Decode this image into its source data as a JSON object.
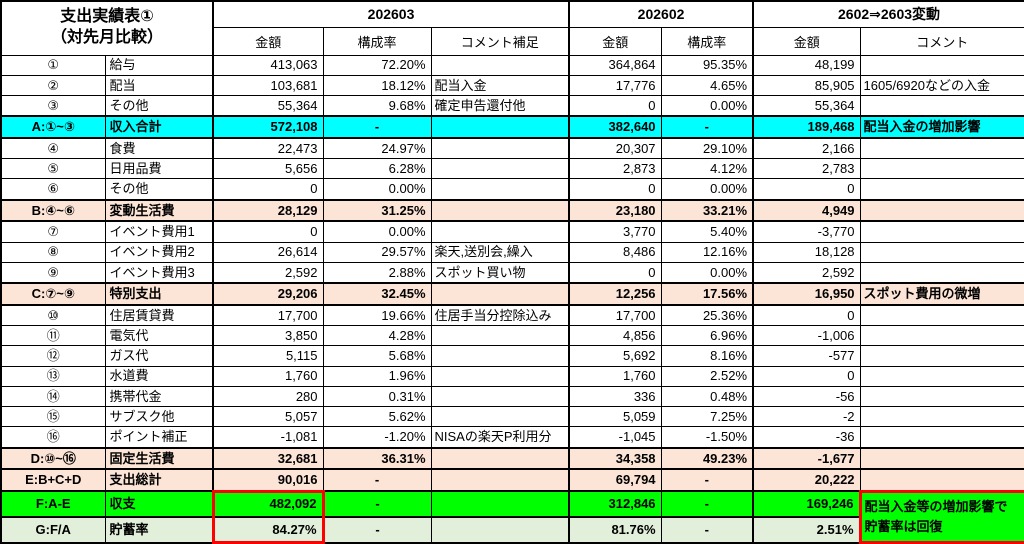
{
  "title": {
    "line1": "支出実績表①",
    "line2": "（対先月比較）"
  },
  "column_groups": [
    {
      "label": "202603"
    },
    {
      "label": "202602"
    },
    {
      "label": "2602⇒2603変動"
    }
  ],
  "subheaders": [
    "金額",
    "構成率",
    "コメント補足",
    "金額",
    "構成率",
    "金額",
    "コメント"
  ],
  "colors": {
    "income_total_row": "#00ffff",
    "section_total_row": "#fce4d6",
    "balance_row": "#00ff00",
    "savings_rate_row": "#e2efda",
    "highlight_border": "#ff0000",
    "grid": "#000000",
    "background": "#ffffff"
  },
  "rows": [
    {
      "id": "①",
      "label": "給与",
      "m3_amount": "413,063",
      "m3_ratio": "72.20%",
      "m3_comment": "",
      "m2_amount": "364,864",
      "m2_ratio": "95.35%",
      "delta_amount": "48,199",
      "delta_comment": ""
    },
    {
      "id": "②",
      "label": "配当",
      "m3_amount": "103,681",
      "m3_ratio": "18.12%",
      "m3_comment": "配当入金",
      "m2_amount": "17,776",
      "m2_ratio": "4.65%",
      "delta_amount": "85,905",
      "delta_comment": "1605/6920などの入金"
    },
    {
      "id": "③",
      "label": "その他",
      "m3_amount": "55,364",
      "m3_ratio": "9.68%",
      "m3_comment": "確定申告還付他",
      "m2_amount": "0",
      "m2_ratio": "0.00%",
      "delta_amount": "55,364",
      "delta_comment": ""
    },
    {
      "id": "A:①~③",
      "label": "収入合計",
      "m3_amount": "572,108",
      "m3_ratio": "-",
      "m3_comment": "",
      "m2_amount": "382,640",
      "m2_ratio": "-",
      "delta_amount": "189,468",
      "delta_comment": "配当入金の増加影響",
      "style": "cyan"
    },
    {
      "id": "④",
      "label": "食費",
      "m3_amount": "22,473",
      "m3_ratio": "24.97%",
      "m3_comment": "",
      "m2_amount": "20,307",
      "m2_ratio": "29.10%",
      "delta_amount": "2,166",
      "delta_comment": ""
    },
    {
      "id": "⑤",
      "label": "日用品費",
      "m3_amount": "5,656",
      "m3_ratio": "6.28%",
      "m3_comment": "",
      "m2_amount": "2,873",
      "m2_ratio": "4.12%",
      "delta_amount": "2,783",
      "delta_comment": ""
    },
    {
      "id": "⑥",
      "label": "その他",
      "m3_amount": "0",
      "m3_ratio": "0.00%",
      "m3_comment": "",
      "m2_amount": "0",
      "m2_ratio": "0.00%",
      "delta_amount": "0",
      "delta_comment": ""
    },
    {
      "id": "B:④~⑥",
      "label": "変動生活費",
      "m3_amount": "28,129",
      "m3_ratio": "31.25%",
      "m3_comment": "",
      "m2_amount": "23,180",
      "m2_ratio": "33.21%",
      "delta_amount": "4,949",
      "delta_comment": "",
      "style": "peach"
    },
    {
      "id": "⑦",
      "label": "イベント費用1",
      "m3_amount": "0",
      "m3_ratio": "0.00%",
      "m3_comment": "",
      "m2_amount": "3,770",
      "m2_ratio": "5.40%",
      "delta_amount": "-3,770",
      "delta_comment": ""
    },
    {
      "id": "⑧",
      "label": "イベント費用2",
      "m3_amount": "26,614",
      "m3_ratio": "29.57%",
      "m3_comment": "楽天,送別会,繰入",
      "m2_amount": "8,486",
      "m2_ratio": "12.16%",
      "delta_amount": "18,128",
      "delta_comment": ""
    },
    {
      "id": "⑨",
      "label": "イベント費用3",
      "m3_amount": "2,592",
      "m3_ratio": "2.88%",
      "m3_comment": "スポット買い物",
      "m2_amount": "0",
      "m2_ratio": "0.00%",
      "delta_amount": "2,592",
      "delta_comment": ""
    },
    {
      "id": "C:⑦~⑨",
      "label": "特別支出",
      "m3_amount": "29,206",
      "m3_ratio": "32.45%",
      "m3_comment": "",
      "m2_amount": "12,256",
      "m2_ratio": "17.56%",
      "delta_amount": "16,950",
      "delta_comment": "スポット費用の微増",
      "style": "peach"
    },
    {
      "id": "⑩",
      "label": "住居賃貸費",
      "m3_amount": "17,700",
      "m3_ratio": "19.66%",
      "m3_comment": "住居手当分控除込み",
      "m2_amount": "17,700",
      "m2_ratio": "25.36%",
      "delta_amount": "0",
      "delta_comment": ""
    },
    {
      "id": "⑪",
      "label": "電気代",
      "m3_amount": "3,850",
      "m3_ratio": "4.28%",
      "m3_comment": "",
      "m2_amount": "4,856",
      "m2_ratio": "6.96%",
      "delta_amount": "-1,006",
      "delta_comment": ""
    },
    {
      "id": "⑫",
      "label": "ガス代",
      "m3_amount": "5,115",
      "m3_ratio": "5.68%",
      "m3_comment": "",
      "m2_amount": "5,692",
      "m2_ratio": "8.16%",
      "delta_amount": "-577",
      "delta_comment": ""
    },
    {
      "id": "⑬",
      "label": "水道費",
      "m3_amount": "1,760",
      "m3_ratio": "1.96%",
      "m3_comment": "",
      "m2_amount": "1,760",
      "m2_ratio": "2.52%",
      "delta_amount": "0",
      "delta_comment": ""
    },
    {
      "id": "⑭",
      "label": "携帯代金",
      "m3_amount": "280",
      "m3_ratio": "0.31%",
      "m3_comment": "",
      "m2_amount": "336",
      "m2_ratio": "0.48%",
      "delta_amount": "-56",
      "delta_comment": ""
    },
    {
      "id": "⑮",
      "label": "サブスク他",
      "m3_amount": "5,057",
      "m3_ratio": "5.62%",
      "m3_comment": "",
      "m2_amount": "5,059",
      "m2_ratio": "7.25%",
      "delta_amount": "-2",
      "delta_comment": ""
    },
    {
      "id": "⑯",
      "label": "ポイント補正",
      "m3_amount": "-1,081",
      "m3_ratio": "-1.20%",
      "m3_comment": "NISAの楽天P利用分",
      "m2_amount": "-1,045",
      "m2_ratio": "-1.50%",
      "delta_amount": "-36",
      "delta_comment": ""
    },
    {
      "id": "D:⑩~⑯",
      "label": "固定生活費",
      "m3_amount": "32,681",
      "m3_ratio": "36.31%",
      "m3_comment": "",
      "m2_amount": "34,358",
      "m2_ratio": "49.23%",
      "delta_amount": "-1,677",
      "delta_comment": "",
      "style": "peach"
    },
    {
      "id": "E:B+C+D",
      "label": "支出総計",
      "m3_amount": "90,016",
      "m3_ratio": "-",
      "m3_comment": "",
      "m2_amount": "69,794",
      "m2_ratio": "-",
      "delta_amount": "20,222",
      "delta_comment": "",
      "style": "peach"
    },
    {
      "id": "F:A-E",
      "label": "収支",
      "m3_amount": "482,092",
      "m3_ratio": "-",
      "m3_comment": "",
      "m2_amount": "312,846",
      "m2_ratio": "-",
      "delta_amount": "169,246",
      "delta_comment": "配当入金等の増加影響で\n貯蓄率は回復",
      "style": "green",
      "m3_amount_box": "top",
      "delta_comment_rowspan": 2,
      "delta_comment_highlight": true
    },
    {
      "id": "G:F/A",
      "label": "貯蓄率",
      "m3_amount": "84.27%",
      "m3_ratio": "-",
      "m3_comment": "",
      "m2_amount": "81.76%",
      "m2_ratio": "-",
      "delta_amount": "2.51%",
      "delta_comment": null,
      "delta_comment_merged": true,
      "style": "lightgreen",
      "m3_amount_box": "bottom"
    }
  ]
}
